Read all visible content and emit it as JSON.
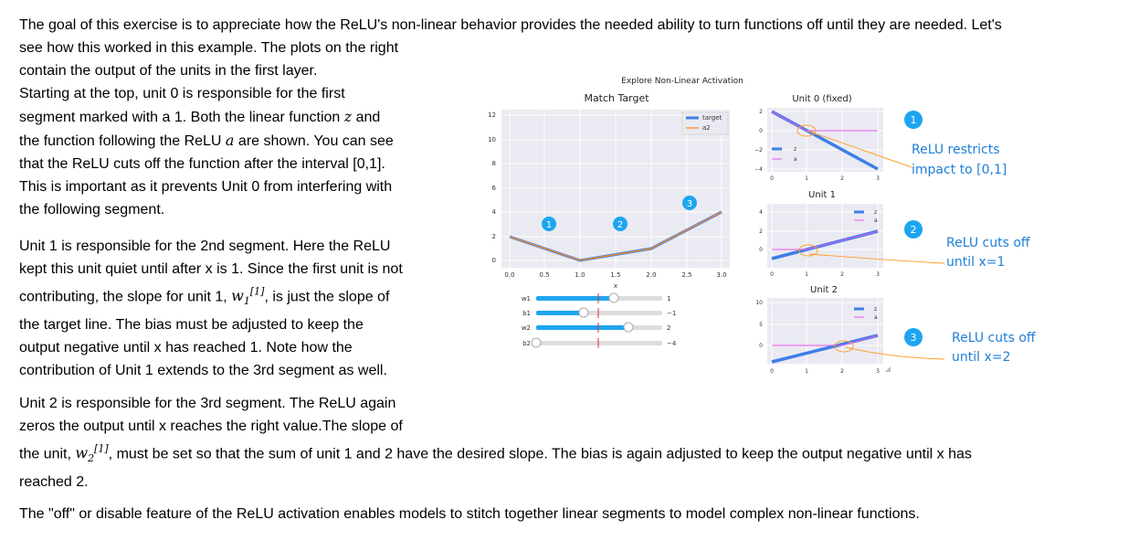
{
  "text": {
    "intro_a": "The goal of this exercise is to appreciate how the ReLU's non-linear behavior provides the needed ability to turn functions off until they are needed. Let's",
    "intro_b": "see how this worked in this example. The plots on the right",
    "intro_c": "contain the output of the units in the first layer.",
    "u0_l1": "Starting at the top, unit 0 is responsible for the first",
    "u0_l2a": "segment marked with a 1. Both the linear function ",
    "u0_var_z": "z",
    "u0_l2b": " and",
    "u0_l3a": "the function following the ReLU ",
    "u0_var_a": "a",
    "u0_l3b": " are shown. You can see",
    "u0_l4": "that the ReLU cuts off the function after the interval [0,1].",
    "u0_l5": "This is important as it prevents Unit 0 from interfering with",
    "u0_l6": "the following segment.",
    "u1_l1": "Unit 1 is responsible for the 2nd segment. Here the ReLU",
    "u1_l2": "kept this unit quiet until after x is 1. Since the first unit is not",
    "u1_l3a": "contributing, the slope for unit 1, ",
    "u1_w": "w",
    "u1_sub": "1",
    "u1_sup": "[1]",
    "u1_l3b": ", is just the slope of",
    "u1_l4": "the target line. The bias must be adjusted to keep the",
    "u1_l5": "output negative until x has reached 1. Note how the",
    "u1_l6": "contribution of Unit 1 extends to the 3rd segment as well.",
    "u2_l1": "Unit 2 is responsible for the 3rd segment. The ReLU again",
    "u2_l2": "zeros the output until x reaches the right value.The slope of",
    "u2_l3a": "the unit, ",
    "u2_w": "w",
    "u2_sub": "2",
    "u2_sup": "[1]",
    "u2_l3b": ", must be set so that the sum of unit 1 and 2 have the desired slope. The bias is again adjusted to keep the output negative until x has",
    "u2_l4": "reached 2.",
    "final": "The \"off\" or disable feature of the ReLU activation enables models to stitch together linear segments to model complex non-linear functions."
  },
  "figure": {
    "suptitle": "Explore Non-Linear Activation",
    "main_title": "Match Target",
    "main_xlabel": "x",
    "main_xticks": [
      "0.0",
      "0.5",
      "1.0",
      "1.5",
      "2.0",
      "2.5",
      "3.0"
    ],
    "main_yticks": [
      "0",
      "2",
      "4",
      "6",
      "8",
      "10",
      "12"
    ],
    "legend_target": "target",
    "legend_a2": "a2",
    "markers": [
      "1",
      "2",
      "3"
    ],
    "unit0_title": "Unit 0 (fixed)",
    "unit1_title": "Unit 1",
    "unit2_title": "Unit 2",
    "unit0_yticks": [
      "2",
      "0",
      "−2",
      "−4"
    ],
    "unit1_yticks": [
      "4",
      "2",
      "0"
    ],
    "unit2_yticks": [
      "10",
      "5",
      "0"
    ],
    "unit_xticks": [
      "0",
      "1",
      "2",
      "3"
    ],
    "legend_z": "z",
    "legend_a": "a",
    "sliders": [
      {
        "name": "w1",
        "value": "1"
      },
      {
        "name": "b1",
        "value": "−1"
      },
      {
        "name": "w2",
        "value": "2"
      },
      {
        "name": "b2",
        "value": "−4"
      }
    ]
  },
  "annotations": {
    "a1_num": "1",
    "a1_line1": "ReLU restricts",
    "a1_line2": "impact to [0,1]",
    "a2_num": "2",
    "a2_line1": "ReLU cuts off",
    "a2_line2": "until x=1",
    "a3_num": "3",
    "a3_line1": "ReLU cuts off",
    "a3_line2": "until x=2"
  },
  "colors": {
    "marker_blue": "#1ea5f0",
    "line_blue": "#3d7fe6",
    "line_pink": "#ee55ee",
    "annotation_text": "#1d7fd6",
    "arrow": "#ff9f2a"
  }
}
